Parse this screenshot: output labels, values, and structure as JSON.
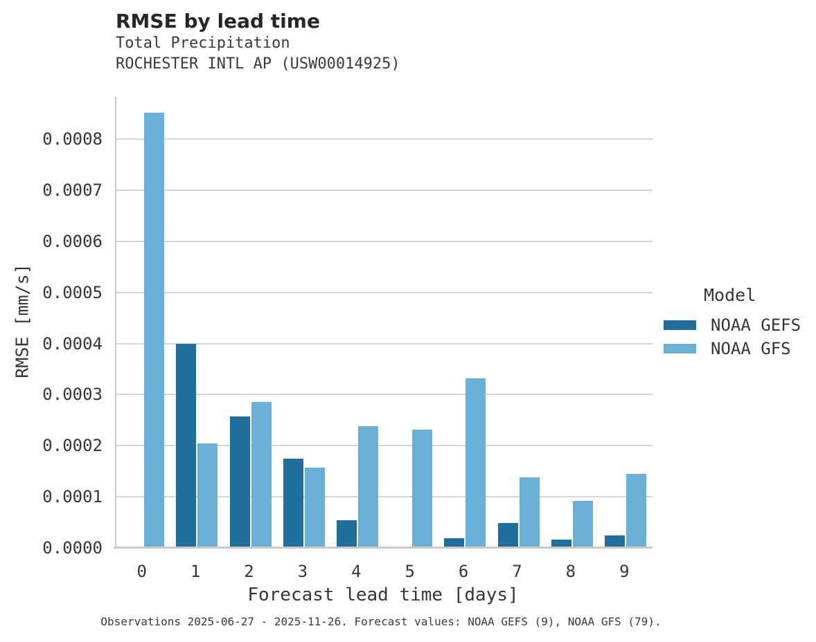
{
  "title": "RMSE by lead time",
  "subtitle_line1": "Total Precipitation",
  "subtitle_line2": "ROCHESTER INTL AP (USW00014925)",
  "caption": "Observations 2025-06-27 - 2025-11-26. Forecast values: NOAA GEFS (9), NOAA GFS (79).",
  "legend": {
    "title": "Model",
    "entries": [
      {
        "label": "NOAA GEFS",
        "color": "#1f6e9c"
      },
      {
        "label": "NOAA GFS",
        "color": "#6cb0d7"
      }
    ]
  },
  "colors": {
    "gefs": "#1f6e9c",
    "gfs": "#6cb0d7",
    "gridline": "#d4d4d4",
    "spine": "#c9c9c9",
    "text": "#363636",
    "title_text": "#262626"
  },
  "chart_data": {
    "type": "bar",
    "title": "RMSE by lead time",
    "subtitle": [
      "Total Precipitation",
      "ROCHESTER INTL AP (USW00014925)"
    ],
    "xlabel": "Forecast lead time [days]",
    "ylabel": "RMSE [mm/s]",
    "categories": [
      "0",
      "1",
      "2",
      "3",
      "4",
      "5",
      "6",
      "7",
      "8",
      "9"
    ],
    "series": [
      {
        "name": "NOAA GEFS",
        "color": "#1f6e9c",
        "values": [
          null,
          0.000399,
          0.000257,
          0.000175,
          5.4e-05,
          2e-06,
          1.9e-05,
          4.9e-05,
          1.6e-05,
          2.5e-05
        ]
      },
      {
        "name": "NOAA GFS",
        "color": "#6cb0d7",
        "values": [
          0.000852,
          0.000205,
          0.000286,
          0.000157,
          0.000239,
          0.000232,
          0.000332,
          0.000138,
          9.2e-05,
          0.000145
        ]
      }
    ],
    "ylim": [
      0,
      0.000883
    ],
    "yticks": [
      0,
      0.0001,
      0.0002,
      0.0003,
      0.0004,
      0.0005,
      0.0006,
      0.0007,
      0.0008
    ],
    "ytick_labels": [
      "0.0000",
      "0.0001",
      "0.0002",
      "0.0003",
      "0.0004",
      "0.0005",
      "0.0006",
      "0.0007",
      "0.0008"
    ],
    "grid": true,
    "legend_title": "Model",
    "legend_position": "right"
  }
}
